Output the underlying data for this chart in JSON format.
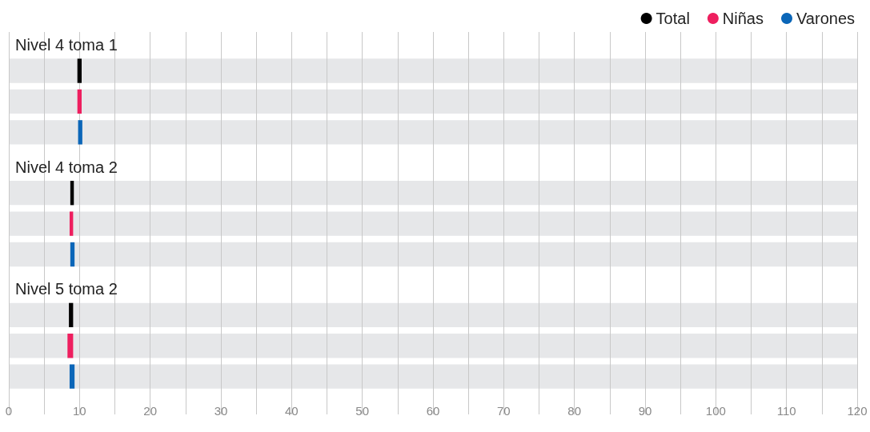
{
  "chart_data": {
    "type": "bar",
    "orientation": "horizontal",
    "categories": [
      "Nivel 4 toma 1",
      "Nivel 4 toma 2",
      "Nivel 5 toma 2"
    ],
    "series": [
      {
        "name": "Total",
        "color": "#000000",
        "base": [
          9.7,
          8.7,
          8.5
        ],
        "values": [
          0.6,
          0.5,
          0.6
        ]
      },
      {
        "name": "Niñas",
        "color": "#ee1f5f",
        "base": [
          9.7,
          8.6,
          8.3
        ],
        "values": [
          0.6,
          0.5,
          0.8
        ]
      },
      {
        "name": "Varones",
        "color": "#0b66b8",
        "base": [
          9.8,
          8.7,
          8.6
        ],
        "values": [
          0.6,
          0.6,
          0.7
        ]
      }
    ],
    "xlim": [
      0,
      120
    ],
    "xticks": [
      0,
      {
        "value": 5,
        "label": null
      },
      10,
      {
        "value": 15,
        "label": null
      },
      20,
      {
        "value": 25,
        "label": null
      },
      30,
      {
        "value": 35,
        "label": null
      },
      40,
      {
        "value": 45,
        "label": null
      },
      50,
      {
        "value": 55,
        "label": null
      },
      60,
      {
        "value": 65,
        "label": null
      },
      70,
      {
        "value": 75,
        "label": null
      },
      80,
      {
        "value": 85,
        "label": null
      },
      90,
      {
        "value": 95,
        "label": null
      },
      100,
      {
        "value": 105,
        "label": null
      },
      110,
      {
        "value": 115,
        "label": null
      },
      120
    ],
    "grid": "x",
    "legend": "top right"
  }
}
